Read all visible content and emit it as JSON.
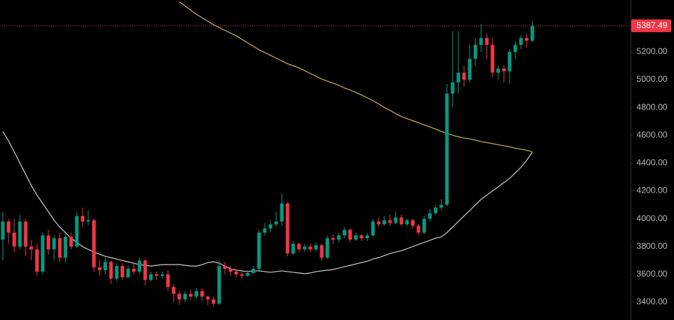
{
  "chart_data": {
    "type": "candlestick",
    "up_color": "#089981",
    "down_color": "#f23645",
    "open": [
      3850,
      3980,
      3900,
      3800,
      3980,
      3800,
      3780,
      3620,
      3880,
      3780,
      3860,
      3720,
      3870,
      3800,
      4020,
      3980,
      3990,
      3650,
      3630,
      3690,
      3570,
      3660,
      3580,
      3640,
      3620,
      3700,
      3560,
      3600,
      3590,
      3600,
      3510,
      3460,
      3420,
      3460,
      3440,
      3480,
      3440,
      3420,
      3390,
      3660,
      3640,
      3620,
      3600,
      3590,
      3610,
      3640,
      3900,
      3930,
      3960,
      3980,
      4110,
      3750,
      3820,
      3780,
      3800,
      3780,
      3810,
      3720,
      3860,
      3850,
      3880,
      3920,
      3850,
      3880,
      3860,
      3880,
      3980,
      3960,
      3990,
      3970,
      4010,
      3960,
      3990,
      3950,
      3900,
      4000,
      4040,
      4080,
      4100,
      4900,
      4980,
      5050,
      5000,
      5150,
      5250,
      5300,
      5250,
      5050,
      5080,
      5060,
      5200,
      5250,
      5300,
      5280
    ],
    "high": [
      4050,
      4000,
      4000,
      4030,
      4000,
      3850,
      3820,
      3900,
      3920,
      3880,
      3900,
      3890,
      3900,
      4050,
      4080,
      4060,
      4000,
      3700,
      3720,
      3700,
      3680,
      3680,
      3660,
      3680,
      3720,
      3710,
      3620,
      3620,
      3620,
      3630,
      3530,
      3480,
      3480,
      3490,
      3500,
      3500,
      3450,
      3440,
      3700,
      3690,
      3660,
      3640,
      3620,
      3630,
      3660,
      3920,
      3970,
      3990,
      4050,
      4180,
      4120,
      3840,
      3830,
      3820,
      3820,
      3830,
      3820,
      3880,
      3890,
      3900,
      3940,
      3930,
      3900,
      3890,
      3900,
      4000,
      4010,
      4020,
      4030,
      4050,
      4030,
      4000,
      4000,
      3960,
      4020,
      4070,
      4100,
      4140,
      4970,
      5350,
      5350,
      5100,
      5250,
      5300,
      5400,
      5330,
      5300,
      5100,
      5100,
      5220,
      5280,
      5320,
      5330,
      5420
    ],
    "low": [
      3700,
      3820,
      3760,
      3780,
      3730,
      3700,
      3590,
      3600,
      3740,
      3700,
      3690,
      3680,
      3780,
      3790,
      3940,
      3950,
      3620,
      3590,
      3600,
      3530,
      3550,
      3560,
      3570,
      3600,
      3600,
      3520,
      3550,
      3560,
      3570,
      3480,
      3400,
      3380,
      3400,
      3420,
      3420,
      3410,
      3380,
      3370,
      3380,
      3600,
      3590,
      3580,
      3570,
      3580,
      3600,
      3630,
      3880,
      3900,
      3940,
      3950,
      3730,
      3740,
      3760,
      3760,
      3760,
      3770,
      3700,
      3710,
      3820,
      3830,
      3860,
      3830,
      3840,
      3840,
      3840,
      3870,
      3940,
      3950,
      3950,
      3960,
      3950,
      3950,
      3930,
      3880,
      3890,
      3980,
      4030,
      4060,
      4090,
      4800,
      4900,
      4950,
      4980,
      5100,
      5200,
      5150,
      5020,
      5000,
      4980,
      4970,
      5150,
      5220,
      5230,
      5270
    ],
    "close": [
      3980,
      3900,
      3800,
      3980,
      3800,
      3780,
      3620,
      3880,
      3780,
      3860,
      3720,
      3870,
      3800,
      4020,
      3980,
      3990,
      3650,
      3630,
      3690,
      3570,
      3660,
      3580,
      3640,
      3620,
      3700,
      3560,
      3600,
      3590,
      3600,
      3510,
      3460,
      3420,
      3460,
      3440,
      3480,
      3440,
      3420,
      3390,
      3660,
      3640,
      3620,
      3600,
      3590,
      3610,
      3640,
      3900,
      3930,
      3960,
      3980,
      4110,
      3750,
      3820,
      3780,
      3800,
      3780,
      3810,
      3720,
      3860,
      3850,
      3880,
      3920,
      3850,
      3880,
      3860,
      3880,
      3980,
      3960,
      3990,
      3970,
      4010,
      3960,
      3990,
      3950,
      3900,
      4000,
      4040,
      4080,
      4100,
      4900,
      4980,
      5050,
      5000,
      5150,
      5250,
      5300,
      5250,
      5050,
      5080,
      5060,
      5200,
      5250,
      5300,
      5280,
      5387.49
    ],
    "lines": [
      {
        "color": "#c9c9cc",
        "values": [
          4627,
          4560,
          4480,
          4400,
          4320,
          4240,
          4170,
          4110,
          4050,
          3990,
          3940,
          3900,
          3860,
          3830,
          3800,
          3780,
          3760,
          3745,
          3730,
          3720,
          3710,
          3700,
          3690,
          3680,
          3670,
          3665,
          3660,
          3665,
          3670,
          3670,
          3670,
          3670,
          3665,
          3660,
          3660,
          3670,
          3685,
          3690,
          3680,
          3660,
          3640,
          3630,
          3625,
          3620,
          3625,
          3625,
          3620,
          3615,
          3620,
          3625,
          3620,
          3615,
          3610,
          3605,
          3610,
          3620,
          3625,
          3630,
          3635,
          3645,
          3655,
          3665,
          3675,
          3685,
          3695,
          3710,
          3720,
          3735,
          3750,
          3760,
          3770,
          3785,
          3800,
          3815,
          3830,
          3845,
          3860,
          3870,
          3900,
          3940,
          3980,
          4020,
          4060,
          4100,
          4140,
          4170,
          4200,
          4230,
          4260,
          4290,
          4330,
          4370,
          4420,
          4480
        ]
      },
      {
        "color": "#c8b05a",
        "values": [
          null,
          null,
          null,
          null,
          null,
          null,
          null,
          null,
          null,
          null,
          null,
          null,
          null,
          null,
          null,
          null,
          null,
          null,
          null,
          null,
          null,
          null,
          null,
          null,
          null,
          null,
          null,
          null,
          null,
          null,
          null,
          5560,
          5530,
          5500,
          5470,
          5445,
          5420,
          5395,
          5375,
          5355,
          5335,
          5315,
          5290,
          5265,
          5240,
          5215,
          5195,
          5175,
          5155,
          5135,
          5115,
          5100,
          5085,
          5065,
          5045,
          5025,
          5005,
          4990,
          4975,
          4960,
          4940,
          4925,
          4908,
          4890,
          4870,
          4850,
          4825,
          4800,
          4780,
          4755,
          4735,
          4720,
          4705,
          4690,
          4675,
          4660,
          4645,
          4627,
          4615,
          4600,
          4590,
          4580,
          4575,
          4565,
          4555,
          4548,
          4540,
          4532,
          4525,
          4517,
          4508,
          4500,
          4492,
          4483
        ]
      }
    ],
    "last_price": 5387.49,
    "ylim": [
      3272,
      5573
    ],
    "yticks": [
      {
        "value": 3400,
        "label": "3400.00"
      },
      {
        "value": 3600,
        "label": "3600.00"
      },
      {
        "value": 3800,
        "label": "3800.00"
      },
      {
        "value": 4000,
        "label": "4000.00"
      },
      {
        "value": 4200,
        "label": "4200.00"
      },
      {
        "value": 4400,
        "label": "4400.00"
      },
      {
        "value": 4600,
        "label": "4600.00"
      },
      {
        "value": 4800,
        "label": "4800.00"
      },
      {
        "value": 5000,
        "label": "5000.00"
      },
      {
        "value": 5200,
        "label": "5200.00"
      }
    ],
    "grid": false
  }
}
